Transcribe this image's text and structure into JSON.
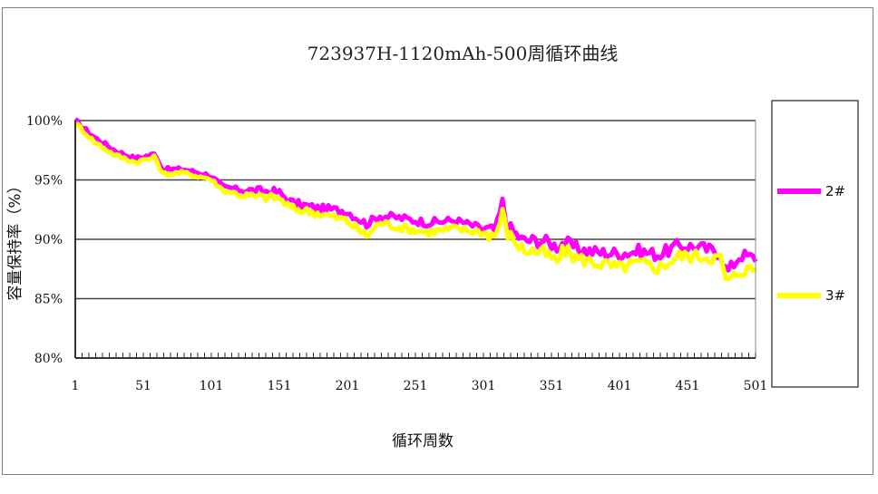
{
  "chart_data": {
    "type": "line",
    "title": "723937H-1120mAh-500周循环曲线",
    "xlabel": "循环周数",
    "ylabel": "容量保持率（%）",
    "xlim": [
      1,
      501
    ],
    "ylim": [
      80,
      100
    ],
    "x_ticks": [
      "1",
      "51",
      "101",
      "151",
      "201",
      "251",
      "301",
      "351",
      "401",
      "451",
      "501"
    ],
    "y_ticks": [
      "80%",
      "85%",
      "90%",
      "95%",
      "100%"
    ],
    "grid": true,
    "legend_position": "right",
    "series": [
      {
        "name": "2#",
        "color": "#ff00ff",
        "points": [
          [
            1,
            100.0
          ],
          [
            15,
            98.6
          ],
          [
            30,
            97.5
          ],
          [
            45,
            96.8
          ],
          [
            60,
            97.2
          ],
          [
            65,
            95.9
          ],
          [
            80,
            95.9
          ],
          [
            100,
            95.4
          ],
          [
            110,
            94.4
          ],
          [
            130,
            94.1
          ],
          [
            150,
            94.0
          ],
          [
            160,
            93.1
          ],
          [
            180,
            92.6
          ],
          [
            200,
            92.4
          ],
          [
            215,
            91.3
          ],
          [
            225,
            92.0
          ],
          [
            240,
            91.8
          ],
          [
            260,
            91.4
          ],
          [
            280,
            91.6
          ],
          [
            300,
            90.9
          ],
          [
            310,
            90.7
          ],
          [
            315,
            93.1
          ],
          [
            318,
            91.2
          ],
          [
            330,
            89.9
          ],
          [
            345,
            89.9
          ],
          [
            355,
            89.4
          ],
          [
            360,
            89.8
          ],
          [
            370,
            89.2
          ],
          [
            385,
            88.9
          ],
          [
            400,
            88.8
          ],
          [
            415,
            89.0
          ],
          [
            430,
            88.7
          ],
          [
            445,
            89.5
          ],
          [
            460,
            89.3
          ],
          [
            475,
            88.9
          ],
          [
            480,
            87.2
          ],
          [
            490,
            88.7
          ],
          [
            501,
            88.4
          ]
        ]
      },
      {
        "name": "3#",
        "color": "#ffff00",
        "points": [
          [
            1,
            99.8
          ],
          [
            15,
            98.2
          ],
          [
            30,
            97.1
          ],
          [
            45,
            96.5
          ],
          [
            60,
            96.9
          ],
          [
            65,
            95.5
          ],
          [
            80,
            95.6
          ],
          [
            100,
            95.1
          ],
          [
            110,
            94.1
          ],
          [
            130,
            93.6
          ],
          [
            150,
            93.5
          ],
          [
            160,
            92.6
          ],
          [
            180,
            92.2
          ],
          [
            200,
            91.6
          ],
          [
            215,
            90.3
          ],
          [
            225,
            91.4
          ],
          [
            240,
            91.0
          ],
          [
            260,
            90.6
          ],
          [
            280,
            90.9
          ],
          [
            300,
            90.6
          ],
          [
            310,
            90.3
          ],
          [
            315,
            92.3
          ],
          [
            318,
            90.6
          ],
          [
            330,
            89.1
          ],
          [
            345,
            88.9
          ],
          [
            355,
            88.1
          ],
          [
            360,
            89.1
          ],
          [
            370,
            88.4
          ],
          [
            385,
            88.0
          ],
          [
            400,
            87.6
          ],
          [
            415,
            88.0
          ],
          [
            430,
            87.6
          ],
          [
            445,
            88.6
          ],
          [
            460,
            88.6
          ],
          [
            475,
            88.4
          ],
          [
            480,
            86.3
          ],
          [
            490,
            87.4
          ],
          [
            501,
            87.5
          ]
        ]
      }
    ]
  }
}
